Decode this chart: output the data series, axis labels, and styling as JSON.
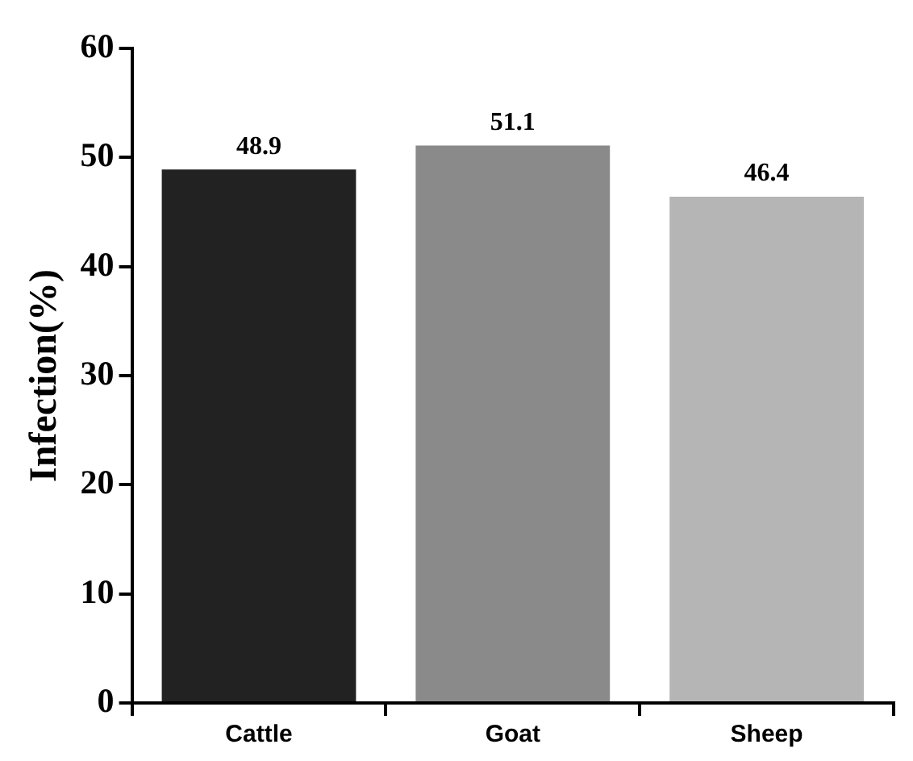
{
  "chart_data": {
    "type": "bar",
    "ylabel": "Infection(%)",
    "categories": [
      "Cattle",
      "Goat",
      "Sheep"
    ],
    "values": [
      48.9,
      51.1,
      46.4
    ],
    "colors": [
      "#222222",
      "#8a8a8a",
      "#b5b5b5"
    ],
    "ylim": [
      0,
      60
    ],
    "yticks": [
      0,
      10,
      20,
      30,
      40,
      50,
      60
    ],
    "data_labels": true,
    "grid": false,
    "legend": false
  }
}
